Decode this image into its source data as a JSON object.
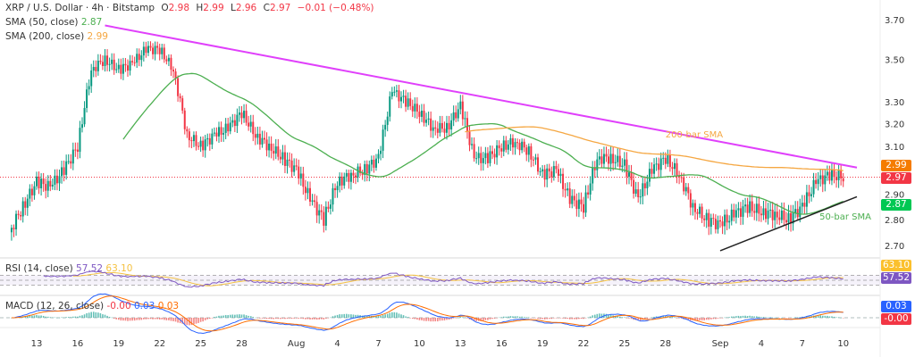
{
  "header": {
    "symbol": "XRP / U.S. Dollar · 4h · Bitstamp",
    "o_label": "O",
    "o": "2.98",
    "h_label": "H",
    "h": "2.99",
    "l_label": "L",
    "l": "2.96",
    "c_label": "C",
    "c": "2.97",
    "change": "−0.01 (−0.48%)",
    "sma50_label": "SMA (50, close)",
    "sma50_value": "2.87",
    "sma200_label": "SMA (200, close)",
    "sma200_value": "2.99",
    "rsi_label": "RSI (14, close)",
    "rsi_value": "57.52",
    "rsi_ma_value": "63.10",
    "macd_label": "MACD (12, 26, close)",
    "macd_hist": "-0.00",
    "macd_value": "0.03",
    "macd_signal": "0.03"
  },
  "price_tags": {
    "sma200": "2.99",
    "last": "2.97",
    "sma50": "2.87",
    "rsi_ma": "63.10",
    "rsi": "57.52",
    "macd": "0.03",
    "hist": "-0.00"
  },
  "colors": {
    "up": "#089981",
    "down": "#f23645",
    "sma50": "#4caf50",
    "sma200": "#f5a742",
    "resistance": "#e040fb",
    "support": "#222222",
    "rsi": "#7e57c2",
    "macd": "#2962ff",
    "signal": "#ff6d00"
  },
  "chart_data": {
    "type": "candlestick",
    "scale": "log",
    "ylim": [
      2.62,
      3.74
    ],
    "yticks": [
      "3.70",
      "3.50",
      "3.30",
      "3.20",
      "3.10",
      "2.90",
      "2.80",
      "2.70"
    ],
    "xticks": [
      {
        "label": "13",
        "date": "2025-07-13"
      },
      {
        "label": "16",
        "date": "2025-07-16"
      },
      {
        "label": "19",
        "date": "2025-07-19"
      },
      {
        "label": "22",
        "date": "2025-07-22"
      },
      {
        "label": "25",
        "date": "2025-07-25"
      },
      {
        "label": "28",
        "date": "2025-07-28"
      },
      {
        "label": "Aug",
        "date": "2025-08-01"
      },
      {
        "label": "4",
        "date": "2025-08-04"
      },
      {
        "label": "7",
        "date": "2025-08-07"
      },
      {
        "label": "10",
        "date": "2025-08-10"
      },
      {
        "label": "13",
        "date": "2025-08-13"
      },
      {
        "label": "16",
        "date": "2025-08-16"
      },
      {
        "label": "19",
        "date": "2025-08-19"
      },
      {
        "label": "22",
        "date": "2025-08-22"
      },
      {
        "label": "25",
        "date": "2025-08-25"
      },
      {
        "label": "28",
        "date": "2025-08-28"
      },
      {
        "label": "Sep",
        "date": "2025-09-01"
      },
      {
        "label": "4",
        "date": "2025-09-04"
      },
      {
        "label": "7",
        "date": "2025-09-07"
      },
      {
        "label": "10",
        "date": "2025-09-10"
      }
    ],
    "start_date": "2025-07-11",
    "daily_close": [
      2.75,
      2.85,
      2.95,
      2.93,
      3.0,
      3.1,
      3.45,
      3.5,
      3.45,
      3.48,
      3.55,
      3.55,
      3.45,
      3.15,
      3.1,
      3.15,
      3.18,
      3.25,
      3.15,
      3.1,
      3.05,
      3.0,
      2.88,
      2.8,
      2.95,
      2.98,
      3.0,
      3.05,
      3.35,
      3.3,
      3.25,
      3.18,
      3.18,
      3.28,
      3.05,
      3.05,
      3.1,
      3.12,
      3.08,
      2.98,
      3.0,
      2.88,
      2.85,
      3.05,
      3.05,
      3.02,
      2.88,
      3.0,
      3.05,
      2.98,
      2.85,
      2.8,
      2.78,
      2.82,
      2.85,
      2.83,
      2.82,
      2.8,
      2.85,
      2.95,
      2.98,
      2.97
    ],
    "annotations": [
      {
        "text": "200-bar SMA",
        "color": "#f5a742",
        "date": "2025-08-28",
        "price": 3.14
      },
      {
        "text": "50-bar SMA",
        "color": "#4caf50",
        "date": "2025-09-09",
        "price": 2.8
      }
    ],
    "trendlines": [
      {
        "name": "resistance",
        "from": {
          "date": "2025-07-18",
          "price": 3.67
        },
        "to": {
          "date": "2025-09-11",
          "price": 3.01
        }
      },
      {
        "name": "support",
        "from": {
          "date": "2025-09-01",
          "price": 2.68
        },
        "to": {
          "date": "2025-09-11",
          "price": 2.89
        }
      }
    ],
    "rsi_levels": [
      70,
      50,
      30
    ]
  }
}
